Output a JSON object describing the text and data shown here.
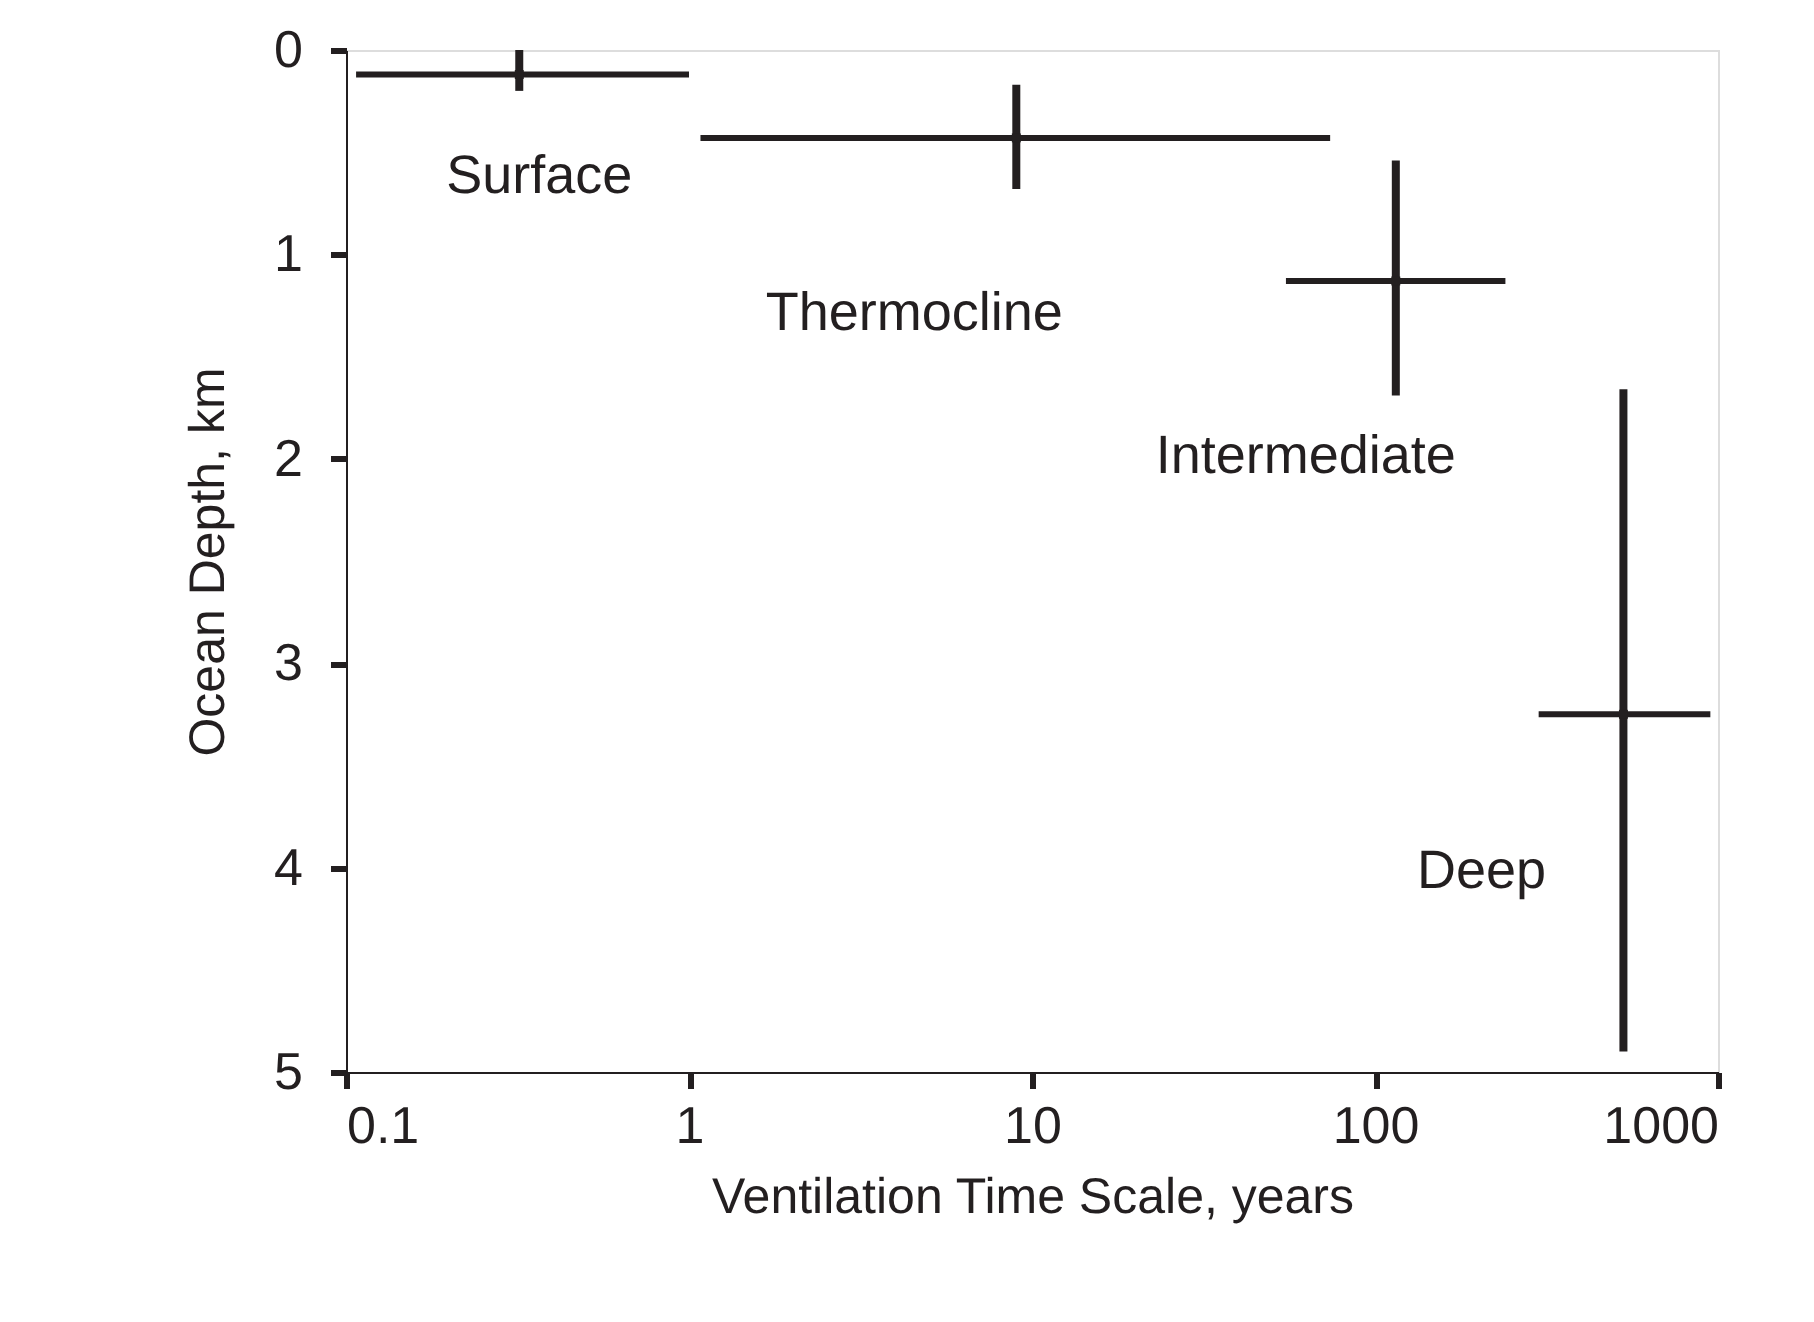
{
  "chart_data": {
    "type": "scatter",
    "xlabel": "Ventilation Time Scale, years",
    "ylabel": "Ocean Depth, km",
    "log": "x",
    "xlim": [
      0.1,
      1000
    ],
    "xticks": [
      0.1,
      1,
      10,
      100,
      1000
    ],
    "ylim": [
      5,
      0
    ],
    "yticks": [
      0,
      1,
      2,
      3,
      4,
      5
    ],
    "grid": false,
    "marker": "square",
    "series": [
      {
        "name": "Surface",
        "color": "#231f20",
        "x": [
          0.32
        ],
        "values": [
          0.12
        ],
        "errors": [
          [
            0,
            0.2
          ]
        ],
        "xerrors": [
          [
            0.107,
            1
          ]
        ]
      },
      {
        "name": "Thermocline",
        "color": "#231f20",
        "x": [
          9
        ],
        "values": [
          0.43
        ],
        "errors": [
          [
            0.17,
            0.68
          ]
        ],
        "xerrors": [
          [
            1.08,
            74
          ]
        ]
      },
      {
        "name": "Intermediate",
        "color": "#231f20",
        "x": [
          115
        ],
        "values": [
          1.13
        ],
        "errors": [
          [
            0.54,
            1.69
          ]
        ],
        "xerrors": [
          [
            55,
            240
          ]
        ]
      },
      {
        "name": "Deep",
        "color": "#231f20",
        "x": [
          530
        ],
        "values": [
          3.25
        ],
        "errors": [
          [
            1.66,
            4.9
          ]
        ],
        "xerrors": [
          [
            300,
            950
          ]
        ]
      }
    ]
  }
}
